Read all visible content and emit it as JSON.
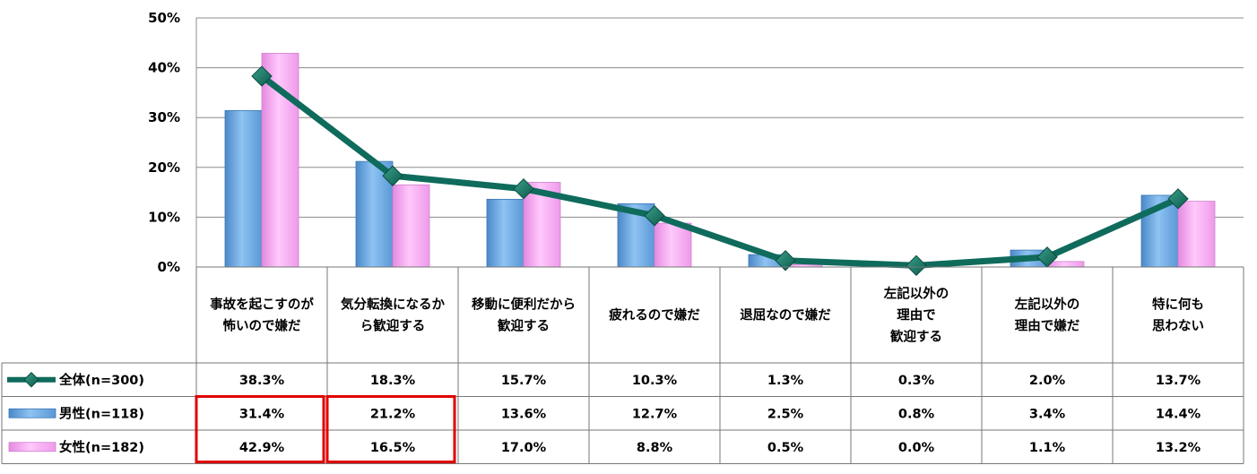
{
  "chart_data": {
    "type": "bar",
    "y_ticks": [
      "0%",
      "10%",
      "20%",
      "30%",
      "40%",
      "50%"
    ],
    "ylim": [
      0,
      50
    ],
    "grid": true,
    "categories": [
      [
        "事故を起こすのが",
        "怖いので嫌だ"
      ],
      [
        "気分転換になるか",
        "ら歓迎する"
      ],
      [
        "移動に便利だから",
        "歓迎する"
      ],
      [
        "疲れるので嫌だ"
      ],
      [
        "退屈なので嫌だ"
      ],
      [
        "左記以外の",
        "理由で",
        "歓迎する"
      ],
      [
        "左記以外の",
        "理由で嫌だ"
      ],
      [
        "特に何も",
        "思わない"
      ]
    ],
    "series": [
      {
        "name": "全体(n=300)",
        "chart_type": "line",
        "color": "#0f6b5c",
        "values": [
          38.3,
          18.3,
          15.7,
          10.3,
          1.3,
          0.3,
          2.0,
          13.7
        ],
        "labels": [
          "38.3%",
          "18.3%",
          "15.7%",
          "10.3%",
          "1.3%",
          "0.3%",
          "2.0%",
          "13.7%"
        ]
      },
      {
        "name": "男性(n=118)",
        "chart_type": "bar",
        "color": "#6aa7e0",
        "values": [
          31.4,
          21.2,
          13.6,
          12.7,
          2.5,
          0.8,
          3.4,
          14.4
        ],
        "labels": [
          "31.4%",
          "21.2%",
          "13.6%",
          "12.7%",
          "2.5%",
          "0.8%",
          "3.4%",
          "14.4%"
        ]
      },
      {
        "name": "女性(n=182)",
        "chart_type": "bar",
        "color": "#f3a3f0",
        "values": [
          42.9,
          16.5,
          17.0,
          8.8,
          0.5,
          0.0,
          1.1,
          13.2
        ],
        "labels": [
          "42.9%",
          "16.5%",
          "17.0%",
          "8.8%",
          "0.5%",
          "0.0%",
          "1.1%",
          "13.2%"
        ]
      }
    ],
    "highlight_color": "#e00000"
  }
}
